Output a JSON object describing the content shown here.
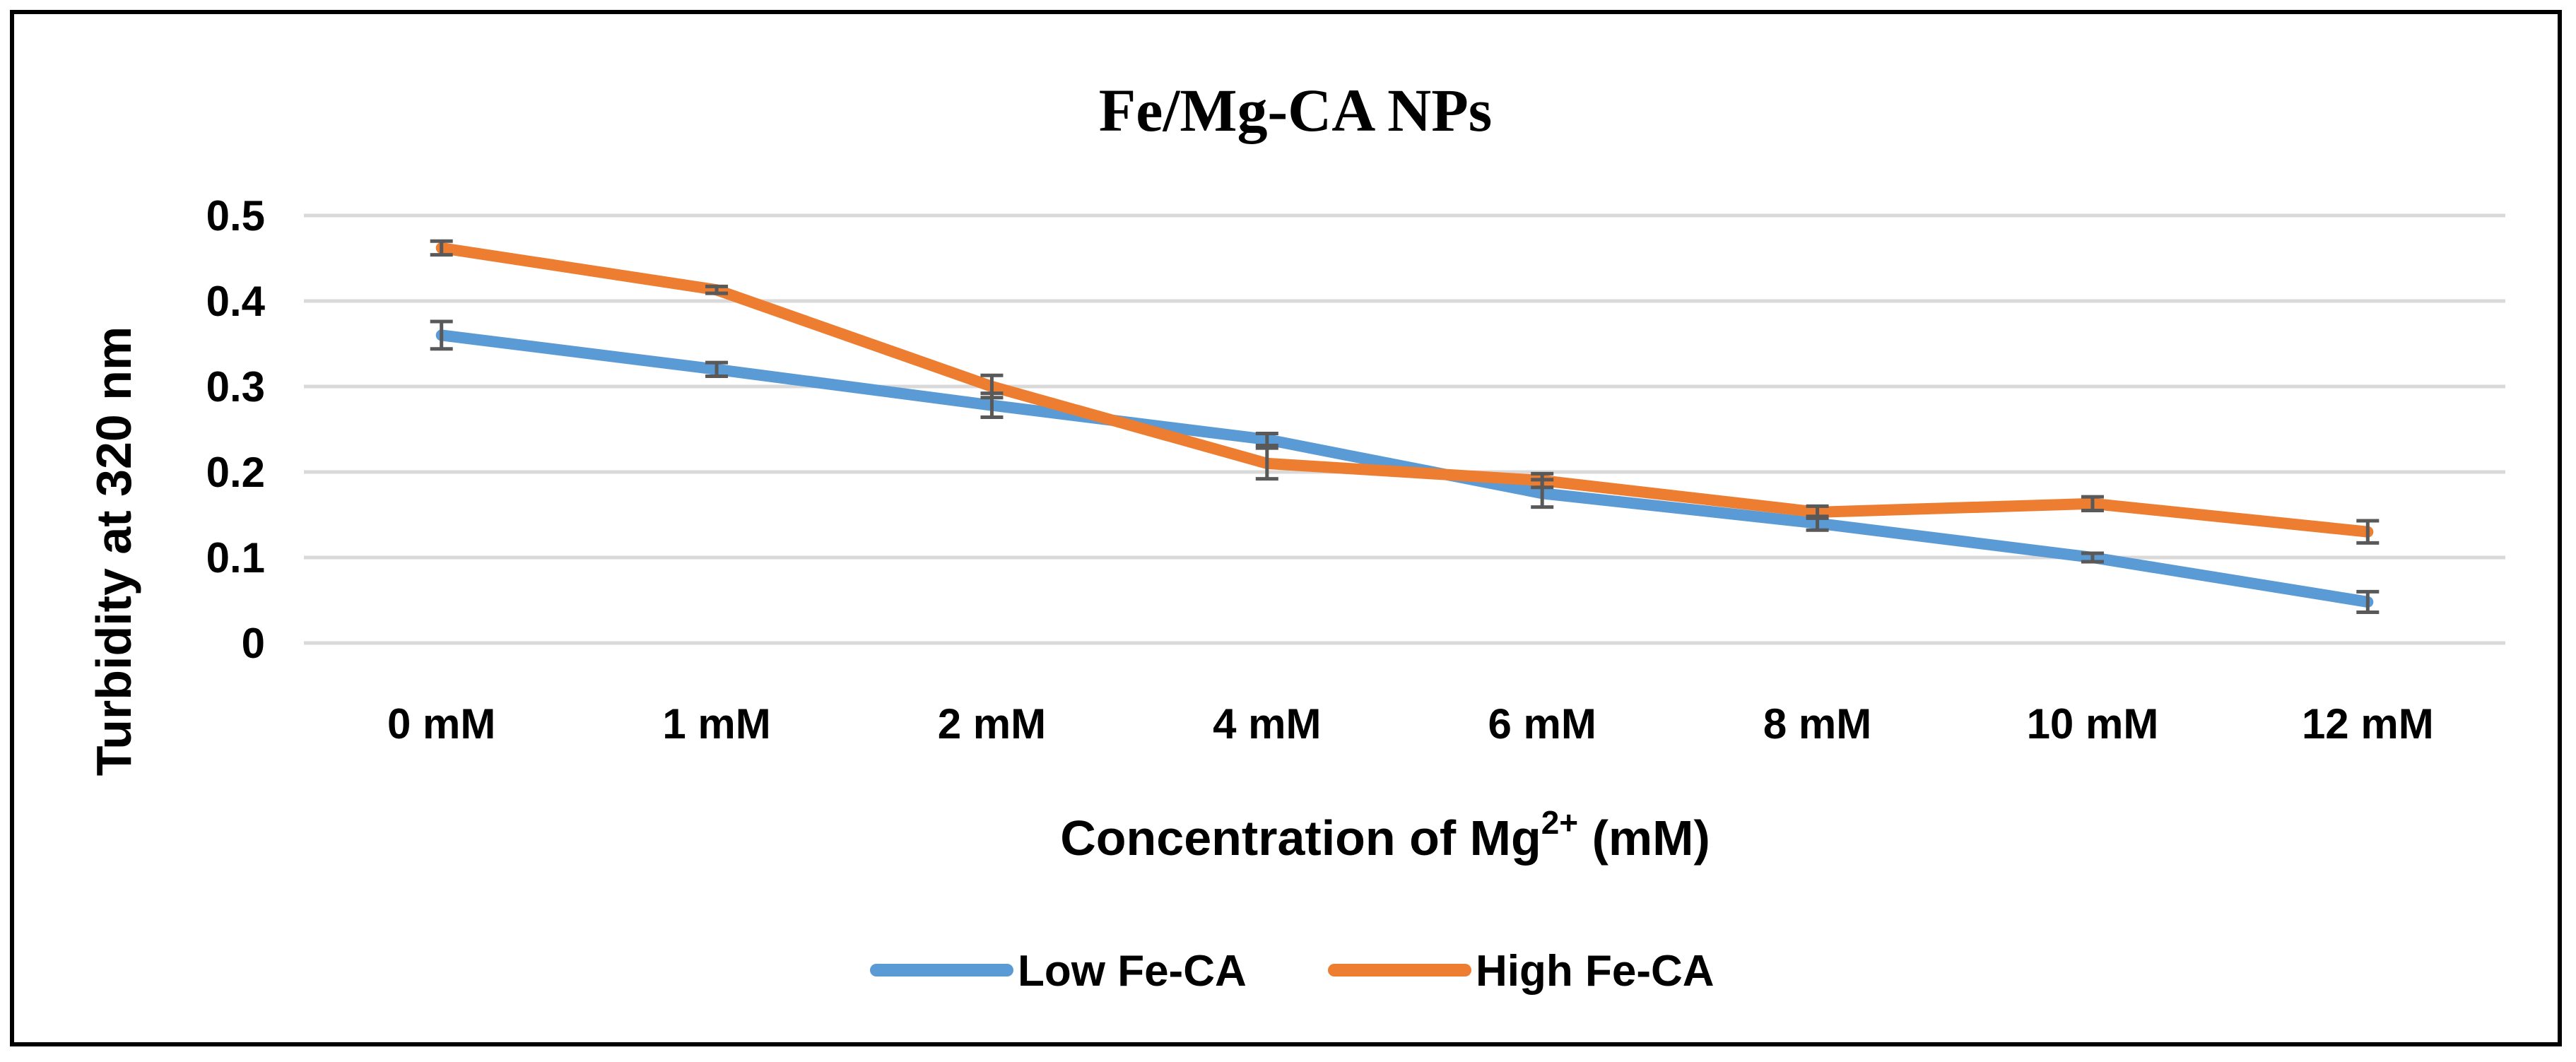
{
  "chart_data": {
    "type": "line",
    "title": "Fe/Mg-CA NPs",
    "xlabel_main": "Concentration of  Mg",
    "xlabel_sup": "2+",
    "xlabel_tail": " (mM)",
    "ylabel": "Turbidity at 320 nm",
    "categories": [
      "0 mM",
      "1 mM",
      "2 mM",
      "4 mM",
      "6 mM",
      "8 mM",
      "10 mM",
      "12 mM"
    ],
    "ylim": [
      0,
      0.5
    ],
    "yticks": [
      0,
      0.1,
      0.2,
      0.3,
      0.4,
      0.5
    ],
    "ytick_labels": [
      "0",
      "0.1",
      "0.2",
      "0.3",
      "0.4",
      "0.5"
    ],
    "grid": true,
    "legend_position": "bottom-center",
    "series": [
      {
        "name": "Low Fe-CA",
        "color": "#5B9BD5",
        "values": [
          0.36,
          0.32,
          0.278,
          0.238,
          0.175,
          0.14,
          0.1,
          0.048
        ],
        "errors": [
          0.016,
          0.008,
          0.014,
          0.007,
          0.016,
          0.008,
          0.005,
          0.012
        ]
      },
      {
        "name": "High Fe-CA",
        "color": "#ED7D31",
        "values": [
          0.462,
          0.413,
          0.3,
          0.21,
          0.19,
          0.153,
          0.163,
          0.13
        ],
        "errors": [
          0.008,
          0.004,
          0.013,
          0.018,
          0.008,
          0.007,
          0.008,
          0.013
        ]
      }
    ]
  }
}
